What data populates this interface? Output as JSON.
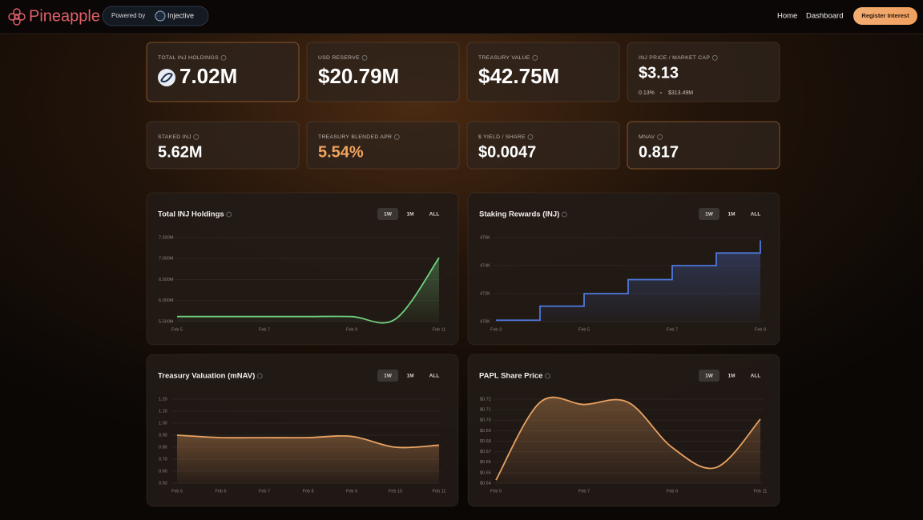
{
  "header": {
    "brand": "Pineapple",
    "powered_by": "Powered by",
    "partner": "Injective",
    "nav": [
      "Home",
      "Dashboard"
    ],
    "cta": "Register Interest"
  },
  "cards": [
    {
      "label": "TOTAL INJ HOLDINGS",
      "value": "7.02M"
    },
    {
      "label": "USD RESERVE",
      "value": "$20.79M"
    },
    {
      "label": "TREASURY VALUE",
      "value": "$42.75M"
    },
    {
      "label": "INJ PRICE / MARKET CAP",
      "value": "$3.13",
      "sub": [
        "0.13%",
        "$313.49M"
      ]
    },
    {
      "label": "STAKED INJ",
      "value": "5.62M"
    },
    {
      "label": "TREASURY BLENDED APR",
      "value": "5.54%",
      "value_color": "#f0a45e"
    },
    {
      "label": "$ YIELD / SHARE",
      "value": "$0.0047"
    },
    {
      "label": "MNAV",
      "value": "0.817"
    }
  ],
  "range_buttons": [
    "1W",
    "1M",
    "ALL"
  ],
  "chart_data": [
    {
      "type": "line",
      "title": "Total INJ Holdings",
      "color": "#6fd07e",
      "area": true,
      "grid": true,
      "categories": [
        "Feb 5",
        null,
        "Feb 7",
        null,
        "Feb 9",
        null,
        "Feb 11"
      ],
      "values": [
        5.62,
        5.62,
        5.62,
        5.62,
        5.62,
        5.56,
        7.02
      ],
      "ylim": [
        5.5,
        7.5
      ],
      "yticks": [
        {
          "value": 7.5,
          "label": "7.500M"
        },
        {
          "value": 7.0,
          "label": "7.000M"
        },
        {
          "value": 6.5,
          "label": "6.500M"
        },
        {
          "value": 6.0,
          "label": "6.000M"
        },
        {
          "value": 5.5,
          "label": "5.500M"
        }
      ]
    },
    {
      "type": "line",
      "title": "Staking Rewards (INJ)",
      "color": "#4f78de",
      "area": true,
      "step": true,
      "grid": true,
      "categories": [
        "Feb 3",
        null,
        "Feb 5",
        null,
        "Feb 7",
        null,
        "Feb 9"
      ],
      "values": [
        470.1,
        471.1,
        472.0,
        473.0,
        474.0,
        474.9,
        475.8
      ],
      "ylim": [
        470,
        476
      ],
      "yticks": [
        {
          "value": 476,
          "label": "476K"
        },
        {
          "value": 474,
          "label": "474K"
        },
        {
          "value": 472,
          "label": "472K"
        },
        {
          "value": 470,
          "label": "470K"
        }
      ]
    },
    {
      "type": "line",
      "title": "Treasury Valuation (mNAV)",
      "color": "#e9a262",
      "area": true,
      "grid": true,
      "categories": [
        "Feb 5",
        "Feb 6",
        "Feb 7",
        "Feb 8",
        "Feb 9",
        "Feb 10",
        "Feb 11"
      ],
      "values": [
        0.9,
        0.88,
        0.88,
        0.88,
        0.89,
        0.8,
        0.817
      ],
      "ylim": [
        0.5,
        1.2
      ],
      "yticks": [
        {
          "value": 1.2,
          "label": "1.20"
        },
        {
          "value": 1.1,
          "label": "1.10"
        },
        {
          "value": 1.0,
          "label": "1.00"
        },
        {
          "value": 0.9,
          "label": "0.90"
        },
        {
          "value": 0.8,
          "label": "0.80"
        },
        {
          "value": 0.7,
          "label": "0.70"
        },
        {
          "value": 0.6,
          "label": "0.60"
        },
        {
          "value": 0.5,
          "label": "0.50"
        }
      ]
    },
    {
      "type": "line",
      "title": "PAPL Share Price",
      "color": "#e9a262",
      "area": true,
      "grid": true,
      "categories": [
        "Feb 5",
        null,
        "Feb 7",
        null,
        "Feb 9",
        null,
        "Feb 11"
      ],
      "values": [
        0.643,
        0.717,
        0.715,
        0.717,
        0.674,
        0.655,
        0.701
      ],
      "ylim": [
        0.64,
        0.72
      ],
      "yticks": [
        {
          "value": 0.72,
          "label": "$0.72"
        },
        {
          "value": 0.71,
          "label": "$0.71"
        },
        {
          "value": 0.7,
          "label": "$0.70"
        },
        {
          "value": 0.69,
          "label": "$0.69"
        },
        {
          "value": 0.68,
          "label": "$0.68"
        },
        {
          "value": 0.67,
          "label": "$0.67"
        },
        {
          "value": 0.66,
          "label": "$0.66"
        },
        {
          "value": 0.65,
          "label": "$0.65"
        },
        {
          "value": 0.64,
          "label": "$0.64"
        }
      ]
    }
  ]
}
